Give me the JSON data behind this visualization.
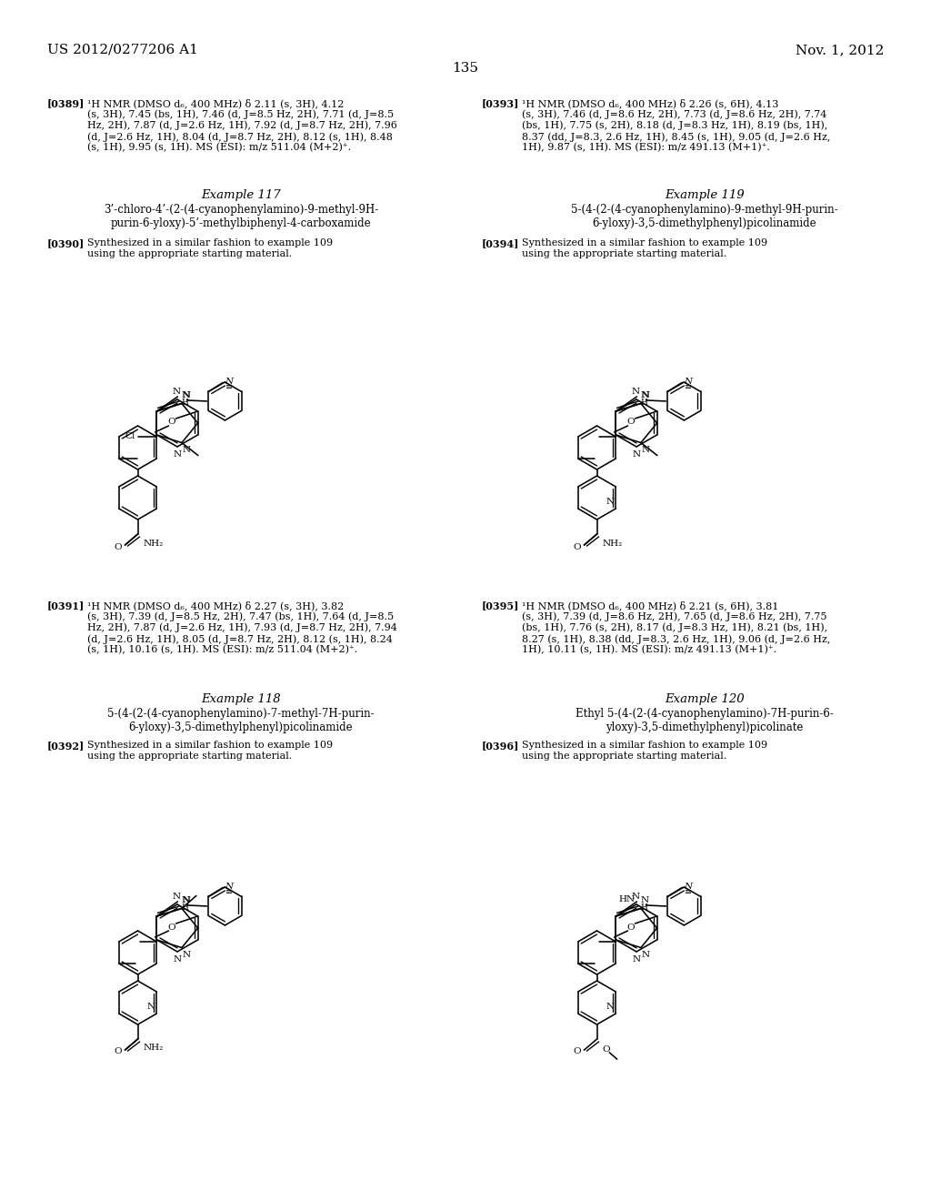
{
  "page_header_left": "US 2012/0277206 A1",
  "page_header_right": "Nov. 1, 2012",
  "page_number": "135",
  "background_color": "#ffffff",
  "text_color": "#000000",
  "nmr_0389": "[0389]   ¹H NMR (DMSO d₆, 400 MHz) δ 2.11 (s, 3H), 4.12\n(s, 3H), 7.45 (bs, 1H), 7.46 (d, J=8.5 Hz, 2H), 7.71 (d, J=8.5\nHz, 2H), 7.87 (d, J=2.6 Hz, 1H), 7.92 (d, J=8.7 Hz, 2H), 7.96\n(d, J=2.6 Hz, 1H), 8.04 (d, J=8.7 Hz, 2H), 8.12 (s, 1H), 8.48\n(s, 1H), 9.95 (s, 1H). MS (ESI): m/z 511.04 (M+2)⁺.",
  "nmr_0393": "[0393]   ¹H NMR (DMSO d₆, 400 MHz) δ 2.26 (s, 6H), 4.13\n(s, 3H), 7.46 (d, J=8.6 Hz, 2H), 7.73 (d, J=8.6 Hz, 2H), 7.74\n(bs, 1H), 7.75 (s, 2H), 8.18 (d, J=8.3 Hz, 1H), 8.19 (bs, 1H),\n8.37 (dd, J=8.3, 2.6 Hz, 1H), 8.45 (s, 1H), 9.05 (d, J=2.6 Hz,\n1H), 9.87 (s, 1H). MS (ESI): m/z 491.13 (M+1)⁺.",
  "example_117_title": "Example 117",
  "example_117_compound": "3’-chloro-4’-(2-(4-cyanophenylamino)-9-methyl-9H-\npurin-6-yloxy)-5’-methylbiphenyl-4-carboxamide",
  "ref_0390": "[0390]   Synthesized in a similar fashion to example 109\nusing the appropriate starting material.",
  "example_119_title": "Example 119",
  "example_119_compound": "5-(4-(2-(4-cyanophenylamino)-9-methyl-9H-purin-\n6-yloxy)-3,5-dimethylphenyl)picolinamide",
  "ref_0394": "[0394]   Synthesized in a similar fashion to example 109\nusing the appropriate starting material.",
  "nmr_0391": "[0391]   ¹H NMR (DMSO d₆, 400 MHz) δ 2.27 (s, 3H), 3.82\n(s, 3H), 7.39 (d, J=8.5 Hz, 2H), 7.47 (bs, 1H), 7.64 (d, J=8.5\nHz, 2H), 7.87 (d, J=2.6 Hz, 1H), 7.93 (d, J=8.7 Hz, 2H), 7.94\n(d, J=2.6 Hz, 1H), 8.05 (d, J=8.7 Hz, 2H), 8.12 (s, 1H), 8.24\n(s, 1H), 10.16 (s, 1H). MS (ESI): m/z 511.04 (M+2)⁺.",
  "nmr_0395": "[0395]   ¹H NMR (DMSO d₆, 400 MHz) δ 2.21 (s, 6H), 3.81\n(s, 3H), 7.39 (d, J=8.6 Hz, 2H), 7.65 (d, J=8.6 Hz, 2H), 7.75\n(bs, 1H), 7.76 (s, 2H), 8.17 (d, J=8.3 Hz, 1H), 8.21 (bs, 1H),\n8.27 (s, 1H), 8.38 (dd, J=8.3, 2.6 Hz, 1H), 9.06 (d, J=2.6 Hz,\n1H), 10.11 (s, 1H). MS (ESI): m/z 491.13 (M+1)⁺.",
  "example_118_title": "Example 118",
  "example_118_compound": "5-(4-(2-(4-cyanophenylamino)-7-methyl-7H-purin-\n6-yloxy)-3,5-dimethylphenyl)picolinamide",
  "ref_0392": "[0392]   Synthesized in a similar fashion to example 109\nusing the appropriate starting material.",
  "example_120_title": "Example 120",
  "example_120_compound": "Ethyl 5-(4-(2-(4-cyanophenylamino)-7H-purin-6-\nyloxy)-3,5-dimethylphenyl)picolinate",
  "ref_0396": "[0396]   Synthesized in a similar fashion to example 109\nusing the appropriate starting material."
}
